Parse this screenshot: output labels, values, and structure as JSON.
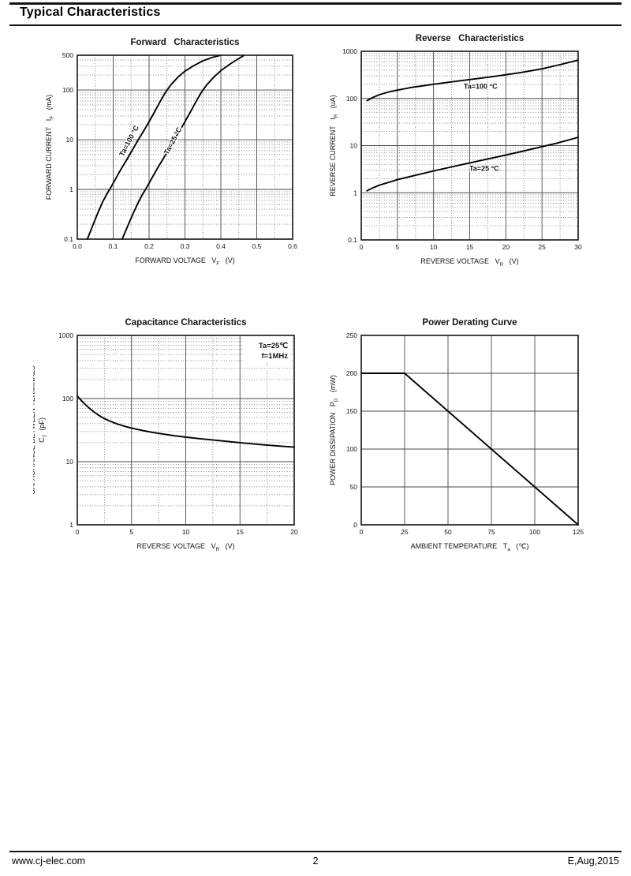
{
  "header": {
    "title": "Typical Characteristics"
  },
  "footer": {
    "website": "www.cj-elec.com",
    "page_number": "2",
    "revision": "E,Aug,2015"
  },
  "colors": {
    "ink": "#141414",
    "grid_major": "#4a4a4a",
    "grid_minor": "#7a7a7a",
    "curve": "#000000",
    "background": "#ffffff"
  },
  "chart_data": [
    {
      "id": "forward",
      "type": "line",
      "title": "Forward   Characteristics",
      "x": {
        "scale": "linear",
        "min": 0,
        "max": 0.6,
        "minor_step": 0.05,
        "ticks": [
          0,
          0.1,
          0.2,
          0.3,
          0.4,
          0.5,
          0.6
        ],
        "tick_labels": [
          "0.0",
          "0.1",
          "0.2",
          "0.3",
          "0.4",
          "0.5",
          "0.6"
        ],
        "label": [
          [
            {
              "t": "FORWARD VOLTAGE   "
            },
            {
              "t": "V"
            },
            {
              "t": "F",
              "sub": true
            },
            {
              "t": "   (V)"
            }
          ]
        ]
      },
      "y": {
        "scale": "log",
        "min": 0.1,
        "max": 500,
        "ticks": [
          0.1,
          1,
          10,
          100,
          500
        ],
        "tick_labels": [
          "0.1",
          "1",
          "10",
          "100",
          "500"
        ],
        "label": [
          [
            {
              "t": "FORWARD CURRENT   "
            },
            {
              "t": "I"
            },
            {
              "t": "F",
              "sub": true
            },
            {
              "t": "   (mA)"
            }
          ]
        ]
      },
      "series": [
        {
          "name": "Ta=100 °C",
          "points": [
            [
              0.028,
              0.1
            ],
            [
              0.042,
              0.18
            ],
            [
              0.056,
              0.32
            ],
            [
              0.07,
              0.55
            ],
            [
              0.082,
              0.8
            ],
            [
              0.095,
              1.15
            ],
            [
              0.11,
              1.8
            ],
            [
              0.125,
              2.8
            ],
            [
              0.14,
              4.2
            ],
            [
              0.155,
              6.5
            ],
            [
              0.17,
              10
            ],
            [
              0.185,
              15
            ],
            [
              0.2,
              23
            ],
            [
              0.215,
              36
            ],
            [
              0.23,
              57
            ],
            [
              0.245,
              88
            ],
            [
              0.26,
              125
            ],
            [
              0.28,
              180
            ],
            [
              0.3,
              240
            ],
            [
              0.325,
              310
            ],
            [
              0.35,
              385
            ],
            [
              0.375,
              450
            ],
            [
              0.4,
              500
            ]
          ],
          "label": {
            "text": "Ta=100 °C",
            "at": [
              0.15,
              9
            ],
            "rotate": -62
          }
        },
        {
          "name": "Ta=25 °C",
          "points": [
            [
              0.125,
              0.1
            ],
            [
              0.14,
              0.18
            ],
            [
              0.155,
              0.32
            ],
            [
              0.17,
              0.55
            ],
            [
              0.182,
              0.8
            ],
            [
              0.195,
              1.15
            ],
            [
              0.21,
              1.8
            ],
            [
              0.225,
              2.8
            ],
            [
              0.24,
              4.2
            ],
            [
              0.255,
              6.5
            ],
            [
              0.27,
              10
            ],
            [
              0.285,
              15
            ],
            [
              0.3,
              23
            ],
            [
              0.315,
              36
            ],
            [
              0.33,
              57
            ],
            [
              0.345,
              88
            ],
            [
              0.36,
              125
            ],
            [
              0.38,
              180
            ],
            [
              0.4,
              245
            ],
            [
              0.425,
              330
            ],
            [
              0.45,
              430
            ],
            [
              0.465,
              500
            ]
          ],
          "label": {
            "text": "Ta=25 °C",
            "at": [
              0.272,
              9
            ],
            "rotate": -62
          }
        }
      ]
    },
    {
      "id": "reverse",
      "type": "line",
      "title": "Reverse   Characteristics",
      "x": {
        "scale": "linear",
        "min": 0,
        "max": 30,
        "minor_step": 2.5,
        "ticks": [
          0,
          5,
          10,
          15,
          20,
          25,
          30
        ],
        "tick_labels": [
          "0",
          "5",
          "10",
          "15",
          "20",
          "25",
          "30"
        ],
        "label": [
          [
            {
              "t": "REVERSE VOLTAGE   "
            },
            {
              "t": "V"
            },
            {
              "t": "R",
              "sub": true
            },
            {
              "t": "   (V)"
            }
          ]
        ]
      },
      "y": {
        "scale": "log",
        "min": 0.1,
        "max": 1000,
        "ticks": [
          0.1,
          1,
          10,
          100,
          1000
        ],
        "tick_labels": [
          "0.1",
          "1",
          "10",
          "100",
          "1000"
        ],
        "label": [
          [
            {
              "t": "REVERSE CURRENT   "
            },
            {
              "t": "I"
            },
            {
              "t": "R",
              "sub": true
            },
            {
              "t": "   (uA)"
            }
          ]
        ]
      },
      "series": [
        {
          "name": "Ta=100 °C",
          "points": [
            [
              0.8,
              90
            ],
            [
              1.5,
              103
            ],
            [
              2.5,
              120
            ],
            [
              4,
              140
            ],
            [
              5,
              150
            ],
            [
              7,
              172
            ],
            [
              10,
              200
            ],
            [
              12,
              220
            ],
            [
              15,
              252
            ],
            [
              18,
              288
            ],
            [
              20,
              318
            ],
            [
              22,
              352
            ],
            [
              25,
              425
            ],
            [
              27,
              500
            ],
            [
              30,
              650
            ]
          ],
          "label": {
            "text": "Ta=100 °C",
            "at": [
              16.5,
              160
            ],
            "rotate": 0
          }
        },
        {
          "name": "Ta=25 °C",
          "points": [
            [
              0.8,
              1.1
            ],
            [
              1.5,
              1.25
            ],
            [
              2.5,
              1.45
            ],
            [
              4,
              1.7
            ],
            [
              5,
              1.9
            ],
            [
              7,
              2.25
            ],
            [
              10,
              2.9
            ],
            [
              12,
              3.4
            ],
            [
              15,
              4.3
            ],
            [
              18,
              5.4
            ],
            [
              20,
              6.3
            ],
            [
              22,
              7.4
            ],
            [
              25,
              9.5
            ],
            [
              27,
              11.2
            ],
            [
              30,
              15
            ]
          ],
          "label": {
            "text": "Ta=25 °C",
            "at": [
              17,
              2.9
            ],
            "rotate": 0
          }
        }
      ]
    },
    {
      "id": "capacitance",
      "type": "line",
      "title": "Capacitance Characteristics",
      "annotation": {
        "lines": [
          "Ta=25℃",
          "f=1MHz"
        ]
      },
      "x": {
        "scale": "linear",
        "min": 0,
        "max": 20,
        "minor_step": 2.5,
        "ticks": [
          0,
          5,
          10,
          15,
          20
        ],
        "tick_labels": [
          "0",
          "5",
          "10",
          "15",
          "20"
        ],
        "label": [
          [
            {
              "t": "REVERSE VOLTAGE   "
            },
            {
              "t": "V"
            },
            {
              "t": "R",
              "sub": true
            },
            {
              "t": "   (V)"
            }
          ]
        ]
      },
      "y": {
        "scale": "log",
        "min": 1,
        "max": 1000,
        "ticks": [
          1,
          10,
          100,
          1000
        ],
        "tick_labels": [
          "1",
          "10",
          "100",
          "1000"
        ],
        "label": [
          [
            {
              "t": "CAPACITANCE BETWEEN TERMINALS"
            }
          ],
          [
            {
              "t": "C"
            },
            {
              "t": "T",
              "sub": true
            },
            {
              "t": "  (pF)"
            }
          ]
        ]
      },
      "series": [
        {
          "name": "CT",
          "points": [
            [
              0,
              110
            ],
            [
              0.25,
              98
            ],
            [
              0.5,
              88
            ],
            [
              0.75,
              80
            ],
            [
              1,
              73
            ],
            [
              1.5,
              62
            ],
            [
              2,
              54
            ],
            [
              2.5,
              48
            ],
            [
              3,
              44
            ],
            [
              3.5,
              40.5
            ],
            [
              4,
              38
            ],
            [
              4.5,
              35.8
            ],
            [
              5,
              34
            ],
            [
              6,
              31.2
            ],
            [
              7,
              29
            ],
            [
              8,
              27.2
            ],
            [
              9,
              25.7
            ],
            [
              10,
              24.5
            ],
            [
              11,
              23.4
            ],
            [
              12,
              22.5
            ],
            [
              13,
              21.6
            ],
            [
              14,
              20.8
            ],
            [
              15,
              20
            ],
            [
              16,
              19.3
            ],
            [
              17,
              18.6
            ],
            [
              18,
              18
            ],
            [
              19,
              17.5
            ],
            [
              20,
              17
            ]
          ]
        }
      ]
    },
    {
      "id": "power",
      "type": "line",
      "title": "Power Derating Curve",
      "x": {
        "scale": "linear",
        "min": 0,
        "max": 125,
        "minor_step": null,
        "ticks": [
          0,
          25,
          50,
          75,
          100,
          125
        ],
        "tick_labels": [
          "0",
          "25",
          "50",
          "75",
          "100",
          "125"
        ],
        "label": [
          [
            {
              "t": "AMBIENT TEMPERATURE   "
            },
            {
              "t": "T"
            },
            {
              "t": "a",
              "sub": true
            },
            {
              "t": "   (℃)"
            }
          ]
        ]
      },
      "y": {
        "scale": "linear",
        "min": 0,
        "max": 250,
        "ticks": [
          0,
          50,
          100,
          150,
          200,
          250
        ],
        "tick_labels": [
          "0",
          "50",
          "100",
          "150",
          "200",
          "250"
        ],
        "label": [
          [
            {
              "t": "POWER DISSIPATION   "
            },
            {
              "t": "P"
            },
            {
              "t": "D",
              "sub": true
            },
            {
              "t": "   (mW)"
            }
          ]
        ]
      },
      "series": [
        {
          "name": "PD",
          "points": [
            [
              0,
              200
            ],
            [
              25,
              200
            ],
            [
              125,
              0
            ]
          ]
        }
      ]
    }
  ]
}
